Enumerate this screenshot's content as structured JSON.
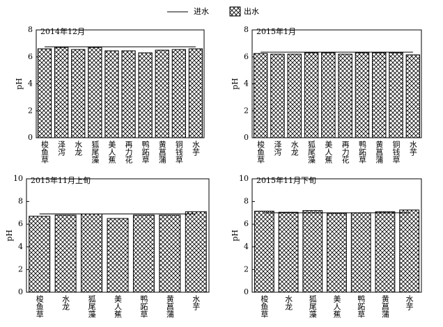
{
  "chart_data": [
    {
      "type": "bar",
      "title": "2014年12月",
      "y_label": "pH",
      "categories": [
        "梭鱼草",
        "泽泻",
        "水龙",
        "狐尾藻",
        "美人蕉",
        "再力花",
        "鸭跖草",
        "黄菖蒲",
        "铜钱草",
        "水芋"
      ],
      "series": [
        {
          "name": "进水",
          "type": "line",
          "color": "#000000",
          "values": [
            6.75,
            6.75,
            6.75,
            6.75,
            6.75,
            6.75,
            6.75,
            6.75,
            6.75,
            6.75
          ]
        },
        {
          "name": "出水",
          "type": "bar",
          "color": "#000000",
          "values": [
            6.6,
            6.7,
            6.55,
            6.7,
            6.45,
            6.45,
            6.3,
            6.5,
            6.55,
            6.6
          ]
        }
      ],
      "ylim": [
        0,
        8
      ],
      "yticks": [
        0,
        2,
        4,
        6,
        8
      ]
    },
    {
      "type": "bar",
      "title": "2015年1月",
      "y_label": "pH",
      "categories": [
        "梭鱼草",
        "泽泻",
        "水龙",
        "狐尾藻",
        "美人蕉",
        "再力花",
        "鸭跖草",
        "黄菖蒲",
        "铜钱草",
        "水芋"
      ],
      "series": [
        {
          "name": "进水",
          "type": "line",
          "color": "#000000",
          "values": [
            6.35,
            6.35,
            6.35,
            6.35,
            6.35,
            6.35,
            6.35,
            6.35,
            6.35,
            6.35
          ]
        },
        {
          "name": "出水",
          "type": "bar",
          "color": "#000000",
          "values": [
            6.25,
            6.2,
            6.2,
            6.3,
            6.3,
            6.2,
            6.3,
            6.3,
            6.3,
            6.15
          ]
        }
      ],
      "ylim": [
        0,
        8
      ],
      "yticks": [
        0,
        2,
        4,
        6,
        8
      ]
    },
    {
      "type": "bar",
      "title": "2015年11月上旬",
      "y_label": "pH",
      "categories": [
        "梭鱼草",
        "水龙",
        "狐尾藻",
        "美人蕉",
        "鸭跖草",
        "黄菖蒲",
        "水芋"
      ],
      "series": [
        {
          "name": "进水",
          "type": "line",
          "color": "#000000",
          "values": [
            6.9,
            6.9,
            6.9,
            6.9,
            6.9,
            6.9,
            6.9
          ]
        },
        {
          "name": "出水",
          "type": "bar",
          "color": "#000000",
          "values": [
            6.7,
            6.8,
            6.9,
            6.5,
            6.8,
            6.8,
            7.1
          ]
        }
      ],
      "ylim": [
        0,
        10
      ],
      "yticks": [
        0,
        2,
        4,
        6,
        8,
        10
      ]
    },
    {
      "type": "bar",
      "title": "2015年11月下旬",
      "y_label": "pH",
      "categories": [
        "梭鱼草",
        "水龙",
        "狐尾藻",
        "美人蕉",
        "鸭跖草",
        "黄菖蒲",
        "水芋"
      ],
      "series": [
        {
          "name": "进水",
          "type": "line",
          "color": "#000000",
          "values": [
            7.0,
            7.0,
            7.0,
            7.0,
            7.0,
            7.0,
            7.0
          ]
        },
        {
          "name": "出水",
          "type": "bar",
          "color": "#000000",
          "values": [
            7.15,
            7.05,
            7.2,
            6.95,
            7.0,
            7.1,
            7.25
          ]
        }
      ],
      "ylim": [
        0,
        10
      ],
      "yticks": [
        0,
        2,
        4,
        6,
        8,
        10
      ]
    }
  ]
}
